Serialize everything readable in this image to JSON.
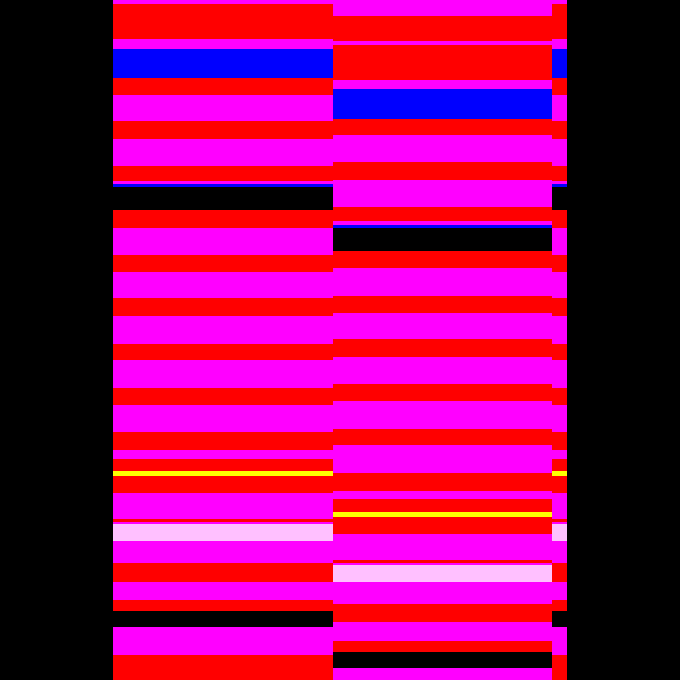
{
  "colors": {
    "background": "#000000",
    "red": "#ff0000",
    "magenta": "#ff00ff",
    "blue": "#0000ff",
    "yellow": "#ffff00",
    "black": "#000000",
    "pink_white": "#ffc0ff"
  },
  "pattern": [
    "magenta",
    "red",
    "magenta",
    "blue",
    "red",
    "magenta",
    "red",
    "magenta",
    "red",
    "magenta",
    "blue",
    "black",
    "red",
    "magenta",
    "red",
    "magenta",
    "red",
    "magenta",
    "red",
    "magenta",
    "red",
    "magenta",
    "red",
    "magenta",
    "red",
    "yellow",
    "red",
    "magenta",
    "red",
    "magenta",
    "pink_white",
    "magenta",
    "red",
    "magenta",
    "red",
    "black",
    "magenta",
    "red",
    "magenta"
  ]
}
